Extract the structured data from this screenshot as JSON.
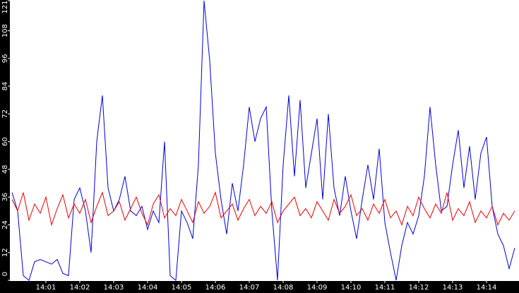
{
  "chart_data": {
    "type": "line",
    "categories": [
      null,
      null,
      null,
      null,
      null,
      null,
      "14:01",
      null,
      null,
      null,
      null,
      null,
      "14:02",
      null,
      null,
      null,
      null,
      null,
      "14:03",
      null,
      null,
      null,
      null,
      null,
      "14:04",
      null,
      null,
      null,
      null,
      null,
      "14:05",
      null,
      null,
      null,
      null,
      null,
      "14:06",
      null,
      null,
      null,
      null,
      null,
      "14:07",
      null,
      null,
      null,
      null,
      null,
      "14:08",
      null,
      null,
      null,
      null,
      null,
      "14:09",
      null,
      null,
      null,
      null,
      null,
      "14:10",
      null,
      null,
      null,
      null,
      null,
      "14:11",
      null,
      null,
      null,
      null,
      null,
      "14:12",
      null,
      null,
      null,
      null,
      null,
      "14:13",
      null,
      null,
      null,
      null,
      null,
      "14:14",
      null,
      null,
      null,
      null,
      null
    ],
    "series": [
      {
        "color": "#0000dd",
        "values": [
          38,
          30,
          2,
          0,
          8,
          9,
          8,
          7,
          9,
          3,
          2,
          35,
          40,
          30,
          12,
          60,
          80,
          40,
          30,
          35,
          45,
          30,
          28,
          32,
          22,
          30,
          25,
          60,
          2,
          0,
          30,
          25,
          18,
          50,
          121,
          95,
          55,
          35,
          20,
          42,
          30,
          50,
          75,
          60,
          70,
          75,
          30,
          0,
          50,
          80,
          45,
          78,
          40,
          55,
          70,
          35,
          72,
          40,
          28,
          45,
          30,
          18,
          35,
          50,
          35,
          57,
          25,
          12,
          0,
          15,
          25,
          20,
          28,
          45,
          75,
          50,
          30,
          32,
          50,
          65,
          40,
          58,
          35,
          55,
          62,
          32,
          20,
          15,
          5,
          14
        ]
      },
      {
        "color": "#ee0000",
        "values": [
          35,
          30,
          38,
          26,
          33,
          29,
          36,
          24,
          31,
          37,
          27,
          33,
          29,
          35,
          25,
          32,
          38,
          28,
          30,
          34,
          26,
          31,
          36,
          29,
          24,
          33,
          37,
          27,
          31,
          28,
          35,
          30,
          25,
          34,
          29,
          32,
          38,
          27,
          30,
          33,
          26,
          31,
          35,
          28,
          32,
          29,
          34,
          25,
          30,
          33,
          36,
          28,
          31,
          27,
          34,
          30,
          26,
          35,
          29,
          32,
          37,
          28,
          31,
          26,
          33,
          29,
          35,
          27,
          30,
          24,
          32,
          28,
          36,
          31,
          27,
          33,
          29,
          38,
          26,
          31,
          28,
          34,
          25,
          30,
          27,
          32,
          24,
          29,
          26,
          30
        ]
      }
    ],
    "ylim": [
      0,
      121
    ],
    "yticks": [
      0,
      12,
      24,
      36,
      48,
      60,
      72,
      84,
      96,
      108,
      121
    ]
  }
}
